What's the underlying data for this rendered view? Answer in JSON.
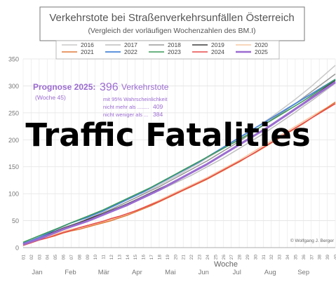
{
  "overlay_text": "Traffic Fatalities",
  "chart_data": {
    "type": "line",
    "title": "Verkehrstote bei Straßenverkehrsunfällen Österreich",
    "subtitle": "(Vergleich der vorläufigen Wochenzahlen des BM.I)",
    "xlabel": "Woche",
    "ylabel": "",
    "ylim": [
      0,
      350
    ],
    "y_ticks": [
      0,
      50,
      100,
      150,
      200,
      250,
      300,
      350
    ],
    "x_ticks": [
      "01",
      "02",
      "03",
      "04",
      "05",
      "06",
      "07",
      "08",
      "09",
      "10",
      "11",
      "12",
      "13",
      "14",
      "15",
      "16",
      "17",
      "18",
      "19",
      "20",
      "21",
      "22",
      "23",
      "24",
      "25",
      "26",
      "27",
      "28",
      "29",
      "30",
      "31",
      "32",
      "33",
      "34",
      "35",
      "36",
      "37",
      "38",
      "39",
      "40"
    ],
    "months": [
      "Jan",
      "Feb",
      "Mär",
      "Apr",
      "Mai",
      "Jun",
      "Jul",
      "Aug",
      "Sep"
    ],
    "grid": true,
    "legend_position": "top",
    "copyright": "© Wolfgang J. Berger",
    "annotation": {
      "prognose_label": "Prognose 2025:",
      "prognose_value": "396",
      "prognose_unit": "Verkehrstote",
      "week": "(Woche 45)",
      "confidence_line": "mit 95% Wahrscheinlichkeit",
      "upper_label": "nicht mehr als ........",
      "upper_value": "409",
      "lower_label": "nicht weniger als ...",
      "lower_value": "384",
      "color": "#9b6bd1"
    },
    "series": [
      {
        "name": "2016",
        "color": "#c8c8c8",
        "width": 1.5,
        "values": [
          9,
          15,
          20,
          26,
          32,
          38,
          42,
          47,
          52,
          58,
          65,
          71,
          78,
          85,
          92,
          100,
          108,
          116,
          124,
          132,
          140,
          149,
          157,
          166,
          175,
          184,
          193,
          202,
          212,
          222,
          232,
          242,
          253,
          264,
          275,
          287,
          299,
          312,
          325,
          338
        ]
      },
      {
        "name": "2017",
        "color": "#bdbdbd",
        "width": 1.5,
        "values": [
          6,
          11,
          17,
          23,
          29,
          35,
          40,
          45,
          51,
          56,
          62,
          68,
          74,
          80,
          86,
          92,
          99,
          106,
          113,
          120,
          127,
          134,
          142,
          150,
          158,
          166,
          175,
          184,
          193,
          202,
          211,
          221,
          231,
          241,
          251,
          262,
          272,
          283,
          294,
          305
        ]
      },
      {
        "name": "2018",
        "color": "#9a9a9a",
        "width": 1.5,
        "values": [
          7,
          12,
          18,
          23,
          29,
          35,
          41,
          47,
          53,
          59,
          65,
          71,
          78,
          85,
          92,
          99,
          106,
          113,
          121,
          129,
          137,
          145,
          153,
          161,
          170,
          179,
          188,
          197,
          207,
          217,
          227,
          237,
          247,
          257,
          267,
          278,
          289,
          300,
          311,
          322
        ]
      },
      {
        "name": "2019",
        "color": "#3d3d3d",
        "width": 1.5,
        "values": [
          8,
          13,
          19,
          25,
          30,
          36,
          41,
          46,
          52,
          58,
          63,
          69,
          75,
          81,
          88,
          95,
          102,
          109,
          116,
          124,
          131,
          139,
          147,
          155,
          164,
          173,
          182,
          191,
          200,
          209,
          219,
          228,
          238,
          248,
          258,
          268,
          279,
          289,
          300,
          310
        ]
      },
      {
        "name": "2020",
        "color": "#f5c9a3",
        "width": 1.5,
        "values": [
          5,
          10,
          15,
          20,
          25,
          30,
          34,
          37,
          40,
          44,
          48,
          52,
          57,
          62,
          68,
          74,
          81,
          88,
          95,
          102,
          109,
          116,
          123,
          130,
          138,
          146,
          154,
          162,
          171,
          180,
          189,
          198,
          207,
          216,
          225,
          234,
          243,
          252,
          260,
          268
        ]
      },
      {
        "name": "2021",
        "color": "#e07a3a",
        "width": 1.5,
        "values": [
          5,
          9,
          14,
          18,
          22,
          27,
          31,
          34,
          38,
          42,
          46,
          50,
          55,
          60,
          66,
          72,
          78,
          85,
          92,
          99,
          106,
          113,
          120,
          127,
          135,
          143,
          151,
          159,
          168,
          176,
          185,
          194,
          203,
          212,
          221,
          230,
          240,
          250,
          260,
          270
        ]
      },
      {
        "name": "2022",
        "color": "#4a86d8",
        "width": 1.8,
        "values": [
          8,
          13,
          19,
          26,
          33,
          40,
          46,
          51,
          56,
          62,
          68,
          75,
          82,
          89,
          96,
          103,
          111,
          119,
          127,
          135,
          143,
          151,
          159,
          168,
          177,
          186,
          195,
          204,
          213,
          222,
          231,
          240,
          249,
          258,
          267,
          276,
          285,
          294,
          303,
          312
        ]
      },
      {
        "name": "2023",
        "color": "#3a9a58",
        "width": 1.5,
        "values": [
          10,
          16,
          22,
          28,
          34,
          40,
          46,
          52,
          58,
          64,
          70,
          77,
          84,
          91,
          98,
          105,
          112,
          120,
          128,
          136,
          144,
          152,
          160,
          168,
          176,
          184,
          192,
          200,
          209,
          218,
          227,
          236,
          245,
          254,
          263,
          272,
          282,
          292,
          302,
          312
        ]
      },
      {
        "name": "2024",
        "color": "#e84a4a",
        "width": 1.5,
        "values": [
          4,
          9,
          14,
          18,
          23,
          28,
          32,
          37,
          41,
          45,
          49,
          54,
          58,
          63,
          68,
          74,
          80,
          86,
          93,
          100,
          107,
          114,
          121,
          128,
          136,
          144,
          152,
          160,
          168,
          177,
          186,
          195,
          204,
          213,
          222,
          231,
          240,
          249,
          258,
          267
        ]
      },
      {
        "name": "2025",
        "color": "#9b6bd1",
        "width": 3,
        "values": [
          6,
          11,
          16,
          22,
          28,
          34,
          39,
          44,
          49,
          55,
          61,
          67,
          73,
          79,
          86,
          93,
          100,
          107,
          115,
          123,
          131,
          139,
          147,
          155,
          164,
          173,
          182,
          191,
          200,
          209,
          218,
          227,
          237,
          247,
          257,
          267,
          277,
          287,
          297,
          307
        ]
      }
    ]
  }
}
